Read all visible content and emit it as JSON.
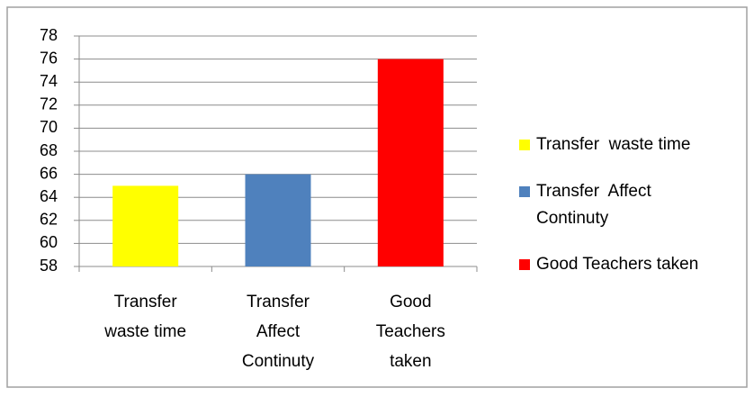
{
  "chart_data": {
    "type": "bar",
    "categories": [
      "Transfer waste time",
      "Transfer Affect Continuty",
      "Good Teachers taken"
    ],
    "values": [
      65,
      66,
      76
    ],
    "colors": [
      "#ffff00",
      "#4f81bd",
      "#ff0000"
    ],
    "legend": [
      "Transfer  waste time",
      "Transfer  Affect Continuty",
      "Good Teachers taken"
    ],
    "ylim": [
      58,
      78
    ],
    "yticks": [
      58,
      60,
      62,
      64,
      66,
      68,
      70,
      72,
      74,
      76,
      78
    ],
    "grid": true,
    "legend_position": "right"
  }
}
